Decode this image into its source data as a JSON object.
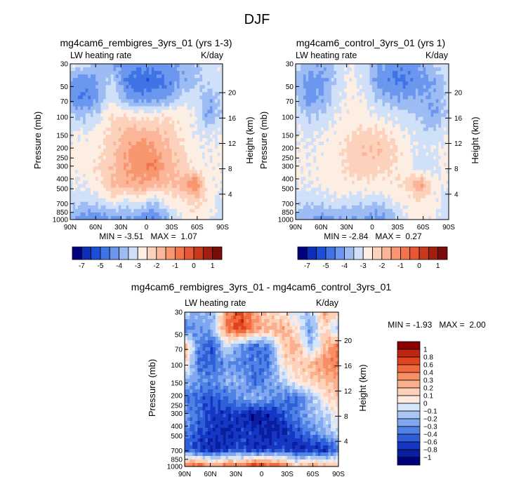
{
  "season": "DJF",
  "panels": [
    {
      "title": "mg4cam6_rembigres_3yrs_01 (yrs 1-3)",
      "variable": "LW heating rate",
      "units": "K/day",
      "minmax": "MIN = -3.51   MAX =  1.07",
      "xlabel": "",
      "ylabel_left": "Pressure (mb)",
      "ylabel_right": "Height (km)"
    },
    {
      "title": "mg4cam6_control_3yrs_01 (yrs 1)",
      "variable": "LW heating rate",
      "units": "K/day",
      "minmax": "MIN = -2.84   MAX =  0.27",
      "xlabel": "",
      "ylabel_left": "Pressure (mb)",
      "ylabel_right": "Height (km)"
    },
    {
      "title": "mg4cam6_rembigres_3yrs_01 - mg4cam6_control_3yrs_01",
      "variable": "LW heating rate",
      "units": "K/day",
      "minmax": "MIN = -1.93   MAX =  2.00",
      "xlabel": "",
      "ylabel_left": "Pressure (mb)",
      "ylabel_right": "Height (km)"
    }
  ],
  "chart_data": [
    {
      "type": "heatmap",
      "name": "rembigres",
      "x_ticks": [
        "90N",
        "60N",
        "30N",
        "0",
        "30S",
        "60S",
        "90S"
      ],
      "pressure_ticks": [
        "30",
        "50",
        "70",
        "100",
        "150",
        "200",
        "250",
        "300",
        "400",
        "500",
        "700",
        "850",
        "1000"
      ],
      "height_ticks": [
        "20",
        "16",
        "12",
        "8",
        "4"
      ],
      "min": -3.51,
      "max": 1.07,
      "field": [
        [
          -1.6,
          -1.8,
          -2.0,
          -2.2,
          -2.4,
          -2.4,
          -2.4,
          -2.3,
          -2.2,
          -2.0,
          -1.8,
          -1.6
        ],
        [
          -2.2,
          -2.5,
          -2.2,
          -1.8,
          -2.6,
          -2.8,
          -2.8,
          -2.6,
          -2.2,
          -2.0,
          -1.8,
          -1.7
        ],
        [
          -2.4,
          -2.6,
          -2.3,
          -1.6,
          -2.2,
          -2.4,
          -2.4,
          -2.2,
          -1.8,
          -1.7,
          -2.2,
          -1.8
        ],
        [
          -1.9,
          -2.0,
          -1.8,
          -1.3,
          -1.3,
          -1.4,
          -1.4,
          -1.3,
          -1.4,
          -1.6,
          -2.3,
          -1.8
        ],
        [
          -1.6,
          -1.6,
          -1.5,
          -1.2,
          -0.9,
          -0.8,
          -0.9,
          -1.1,
          -1.4,
          -1.6,
          -1.7,
          -1.6
        ],
        [
          -1.5,
          -1.5,
          -1.4,
          -1.1,
          -0.7,
          -0.5,
          -0.6,
          -0.9,
          -1.2,
          -1.5,
          -1.6,
          -1.5
        ],
        [
          -1.5,
          -1.5,
          -1.3,
          -1.0,
          -0.7,
          -0.5,
          -0.3,
          -0.8,
          -1.1,
          -1.4,
          -1.6,
          -1.5
        ],
        [
          -1.6,
          -1.6,
          -1.4,
          -1.0,
          -0.8,
          -0.7,
          -0.9,
          -1.0,
          -0.9,
          -0.3,
          -1.5,
          -1.6
        ],
        [
          -1.8,
          -1.9,
          -1.8,
          -1.5,
          -1.8,
          -1.6,
          -2.0,
          -1.5,
          -1.4,
          -1.2,
          -1.4,
          -1.8
        ],
        [
          -2.2,
          -2.4,
          -2.6,
          -2.4,
          -2.2,
          -2.4,
          -2.6,
          -2.2,
          -1.6,
          -1.4,
          -1.6,
          -1.8
        ]
      ]
    },
    {
      "type": "heatmap",
      "name": "control",
      "x_ticks": [
        "90N",
        "60N",
        "30N",
        "0",
        "30S",
        "60S",
        "90S"
      ],
      "pressure_ticks": [
        "30",
        "50",
        "70",
        "100",
        "150",
        "200",
        "250",
        "300",
        "400",
        "500",
        "700",
        "850",
        "1000"
      ],
      "height_ticks": [
        "20",
        "16",
        "12",
        "8",
        "4"
      ],
      "min": -2.84,
      "max": 0.27,
      "field": [
        [
          -1.8,
          -2.0,
          -2.2,
          -1.8,
          -1.6,
          -1.8,
          -2.2,
          -2.4,
          -2.4,
          -2.2,
          -1.9,
          -1.6
        ],
        [
          -2.0,
          -2.4,
          -2.3,
          -1.8,
          -1.5,
          -1.8,
          -2.4,
          -2.6,
          -2.6,
          -2.4,
          -2.2,
          -1.8
        ],
        [
          -1.9,
          -2.4,
          -2.2,
          -1.7,
          -1.5,
          -1.6,
          -2.0,
          -2.2,
          -2.2,
          -2.2,
          -2.2,
          -1.8
        ],
        [
          -1.7,
          -2.0,
          -1.8,
          -1.6,
          -1.5,
          -1.5,
          -1.6,
          -1.7,
          -1.8,
          -2.0,
          -2.3,
          -1.8
        ],
        [
          -1.6,
          -1.7,
          -1.6,
          -1.5,
          -1.3,
          -1.2,
          -1.2,
          -1.4,
          -1.6,
          -1.8,
          -1.8,
          -1.6
        ],
        [
          -1.5,
          -1.6,
          -1.5,
          -1.4,
          -1.2,
          -1.0,
          -1.0,
          -1.2,
          -1.5,
          -1.7,
          -1.6,
          -1.5
        ],
        [
          -1.5,
          -1.6,
          -1.5,
          -1.4,
          -1.2,
          -1.1,
          -1.2,
          -1.3,
          -1.5,
          -1.8,
          -1.7,
          -1.5
        ],
        [
          -1.6,
          -1.6,
          -1.5,
          -1.5,
          -1.4,
          -1.4,
          -1.4,
          -1.4,
          -1.2,
          -0.6,
          -1.5,
          -1.6
        ],
        [
          -1.8,
          -1.9,
          -1.8,
          -1.7,
          -1.8,
          -1.8,
          -1.9,
          -1.6,
          -1.5,
          -1.4,
          -1.5,
          -1.8
        ],
        [
          -2.1,
          -2.2,
          -2.4,
          -2.3,
          -2.2,
          -2.3,
          -2.4,
          -2.1,
          -1.6,
          -1.4,
          -1.6,
          -1.8
        ]
      ]
    },
    {
      "type": "heatmap",
      "name": "difference",
      "x_ticks": [
        "90N",
        "60N",
        "30N",
        "0",
        "30S",
        "60S",
        "90S"
      ],
      "pressure_ticks": [
        "30",
        "50",
        "70",
        "100",
        "150",
        "200",
        "250",
        "300",
        "400",
        "500",
        "700",
        "850",
        "1000"
      ],
      "height_ticks": [
        "20",
        "16",
        "12",
        "8",
        "4"
      ],
      "min": -1.93,
      "max": 2.0,
      "field": [
        [
          -0.2,
          -0.3,
          -0.3,
          0.5,
          0.8,
          0.4,
          0.2,
          0.1,
          -0.1,
          -0.2,
          0.4,
          0.2
        ],
        [
          -0.5,
          -0.4,
          -0.3,
          0.6,
          0.8,
          0.5,
          0.3,
          0.4,
          0.1,
          -0.4,
          0.2,
          -0.3
        ],
        [
          0.4,
          -0.5,
          -0.7,
          -0.1,
          -0.4,
          -0.6,
          -0.5,
          0.2,
          0.4,
          -0.3,
          0.3,
          0.6
        ],
        [
          0.2,
          -0.6,
          -0.6,
          -0.4,
          -0.5,
          -0.5,
          -0.6,
          0.1,
          0.2,
          0.3,
          0.5,
          0.6
        ],
        [
          -0.3,
          -0.4,
          -0.5,
          -0.3,
          -0.3,
          -0.6,
          -0.4,
          -0.2,
          0.1,
          0.2,
          0.3,
          0.4
        ],
        [
          -0.5,
          -0.6,
          -0.7,
          -0.6,
          -0.4,
          -0.3,
          -0.4,
          -0.5,
          -0.6,
          -0.3,
          0.1,
          0.2
        ],
        [
          -0.4,
          -0.6,
          -0.8,
          -0.8,
          -0.8,
          -1.0,
          -0.9,
          -0.7,
          -0.5,
          -0.3,
          -0.2,
          0.1
        ],
        [
          -0.5,
          -0.7,
          -0.8,
          -0.9,
          -0.8,
          -0.8,
          -0.9,
          -0.9,
          -0.7,
          -0.5,
          -0.3,
          -0.1
        ],
        [
          -0.6,
          -0.8,
          -0.9,
          -0.8,
          -0.7,
          -0.9,
          -0.8,
          -0.7,
          -0.9,
          -0.8,
          -0.9,
          -0.5
        ],
        [
          0.6,
          0.8,
          0.4,
          0.7,
          0.6,
          1.0,
          0.8,
          0.7,
          0.3,
          0.5,
          0.4,
          0.3
        ]
      ]
    }
  ],
  "colorbar_top": {
    "labels": [
      "-7",
      "-5",
      "-4",
      "-3",
      "-2",
      "-1",
      "0",
      "1"
    ],
    "colors": [
      "#00007f",
      "#0d2fb8",
      "#1a50d8",
      "#3f73e6",
      "#6b97ee",
      "#9cbcf3",
      "#cfe0f8",
      "#fdeee4",
      "#fdd2bd",
      "#fbb699",
      "#f8966f",
      "#f2744c",
      "#e85834",
      "#c93a1c",
      "#a11f0f",
      "#7a0d0a"
    ]
  },
  "colorbar_diff": {
    "labels": [
      "1",
      "0.8",
      "0.6",
      "0.4",
      "0.3",
      "0.2",
      "0.1",
      "0",
      "-0.1",
      "-0.2",
      "-0.3",
      "-0.4",
      "-0.6",
      "-0.8",
      "-1"
    ],
    "colors": [
      "#8b0000",
      "#c0250f",
      "#e0441f",
      "#f26a3c",
      "#f88f64",
      "#fbb08d",
      "#fdd2b8",
      "#fde9df",
      "#d6e6fb",
      "#a9c6f4",
      "#7ea7ef",
      "#5082e5",
      "#2e5fd9",
      "#1537c4",
      "#0a1ea0",
      "#00007f"
    ]
  }
}
